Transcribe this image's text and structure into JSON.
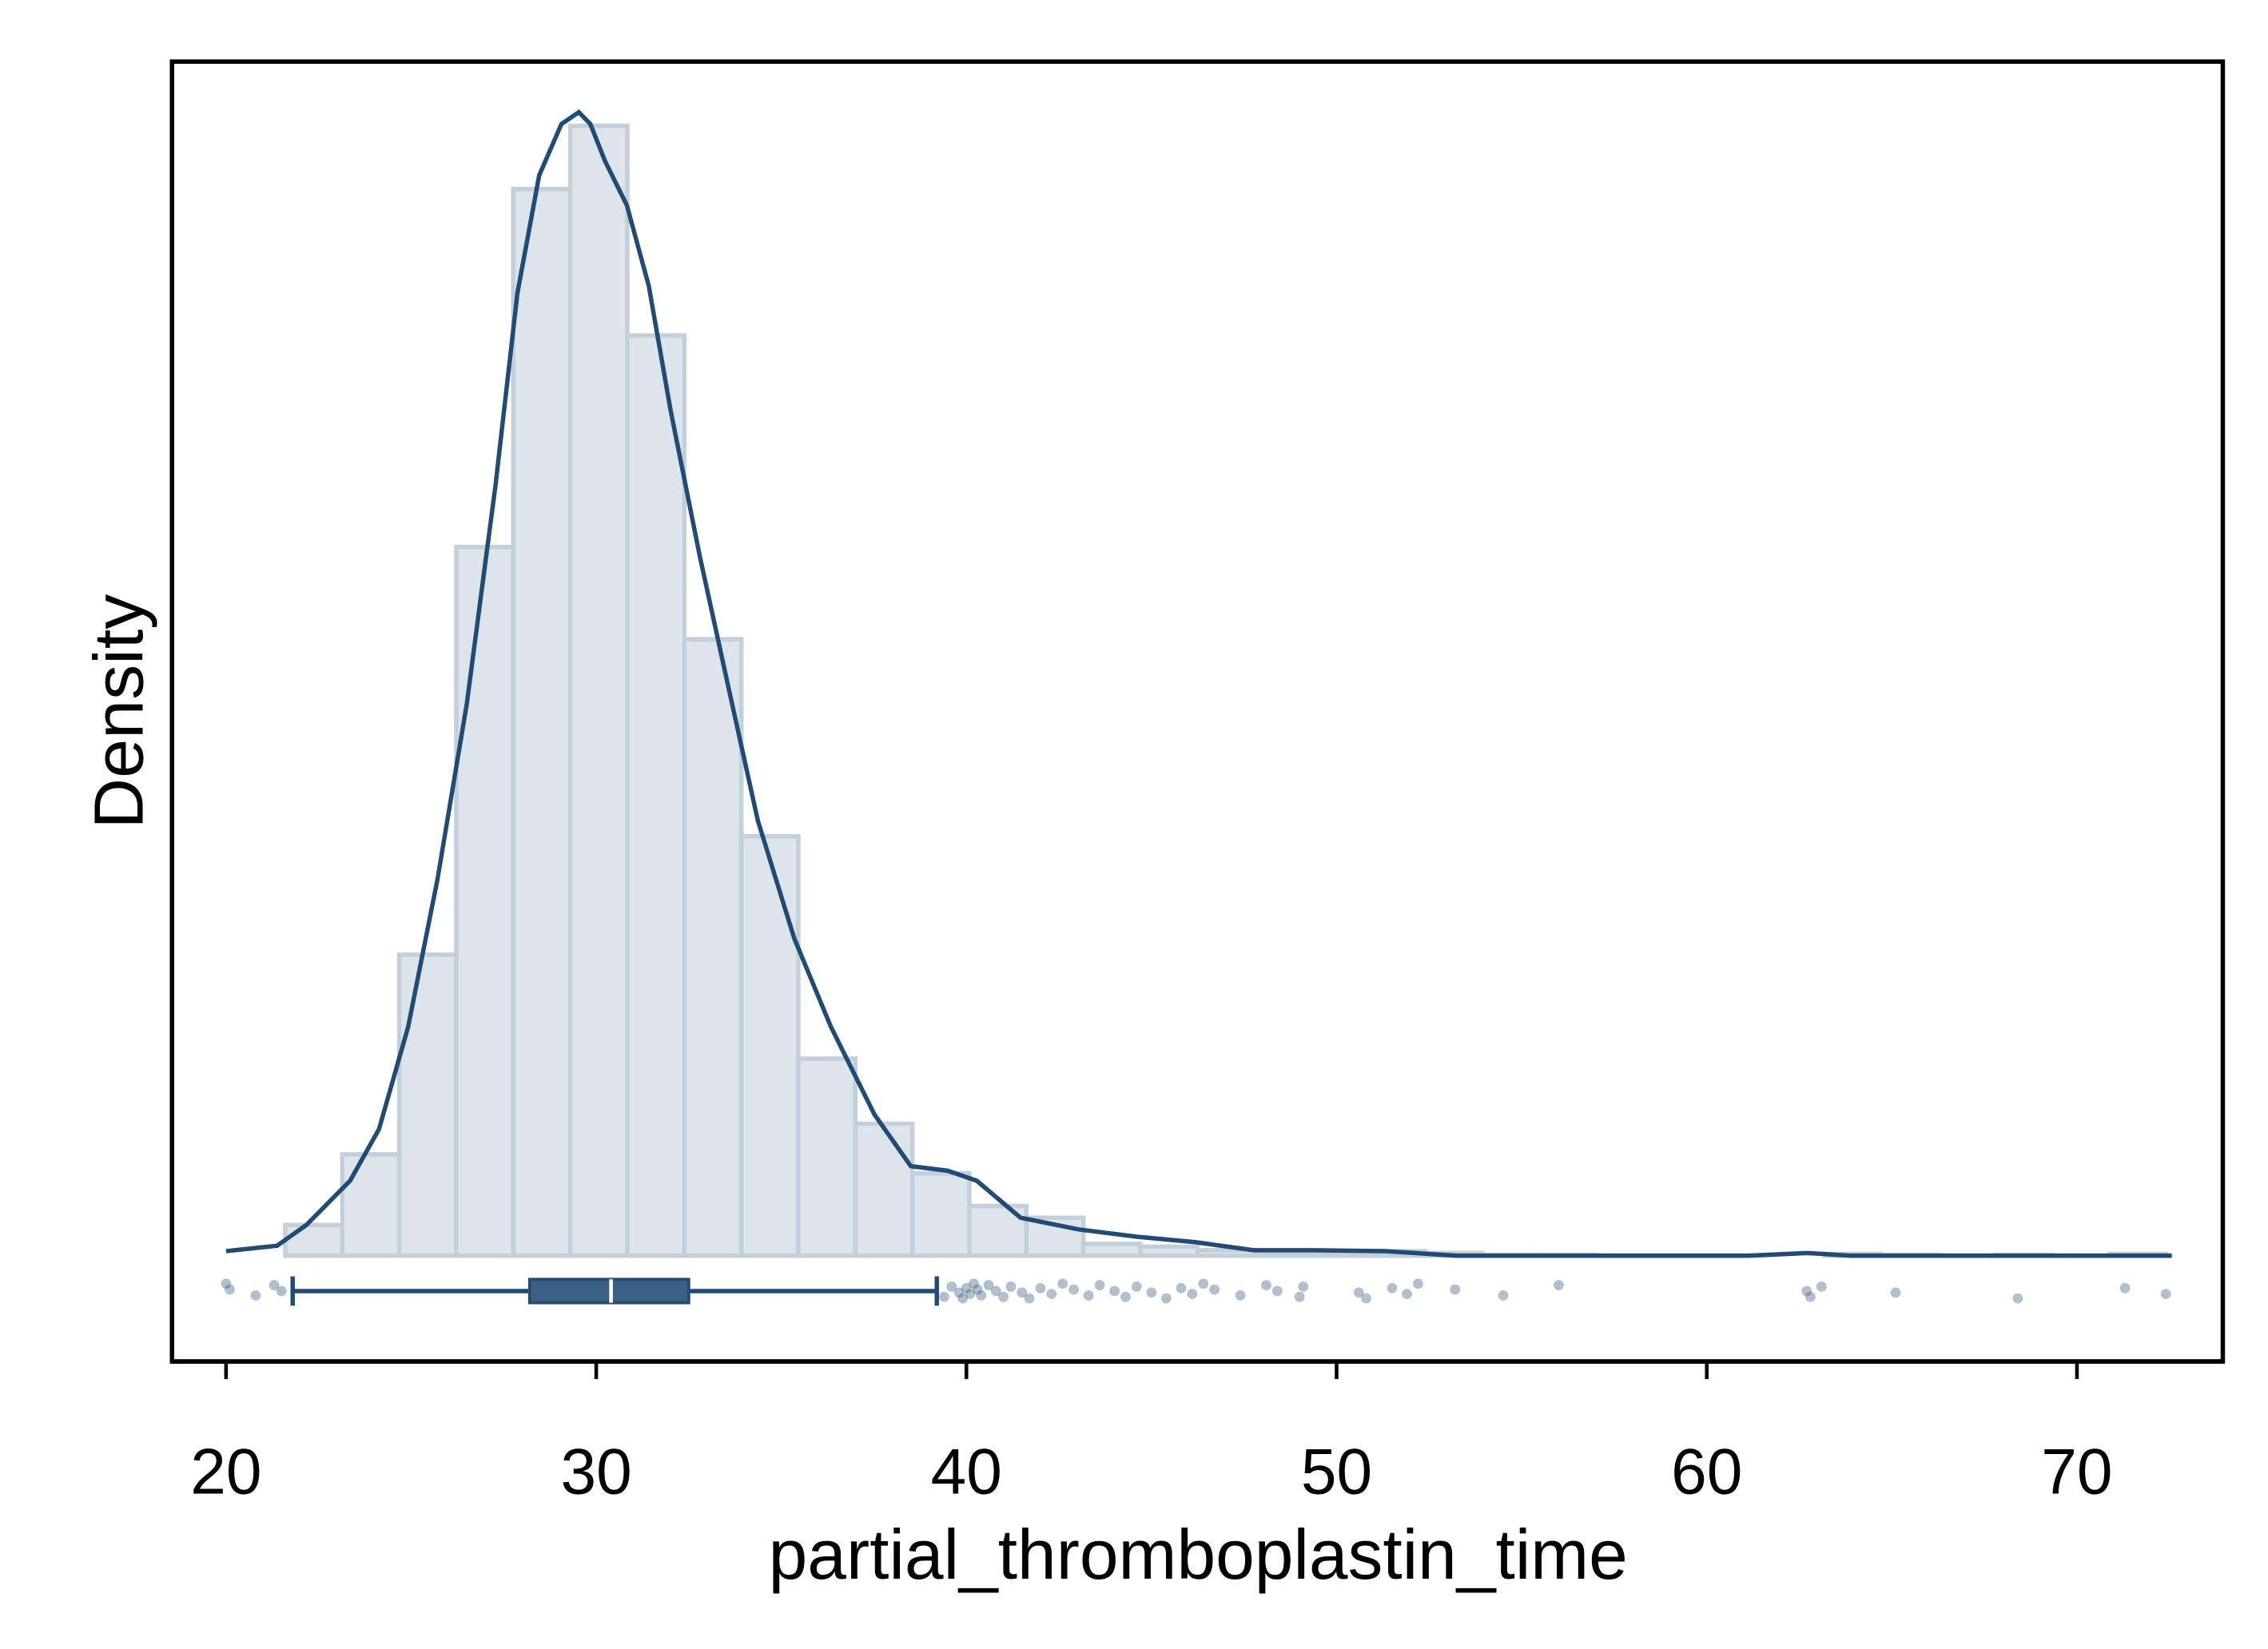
{
  "chart_data": {
    "type": "histogram",
    "x_label": "partial_thromboplastin_time",
    "y_label": "Density",
    "bins": [
      21.6,
      23.14,
      24.68,
      26.22,
      27.76,
      29.3,
      30.84,
      32.38,
      33.92,
      35.46,
      37,
      38.54,
      40.08,
      41.62,
      43.16,
      44.7,
      46.24,
      47.78,
      49.32,
      50.86,
      52.4,
      53.94,
      55.48,
      57.02,
      58.56,
      60.1,
      61.64,
      63.18,
      64.72,
      66.26,
      67.8,
      69.34,
      70.88,
      72.42
    ],
    "values": [
      0.0034,
      0.0112,
      0.0333,
      0.0784,
      0.118,
      0.125,
      0.1018,
      0.0682,
      0.0464,
      0.0218,
      0.0146,
      0.0091,
      0.0055,
      0.0042,
      0.0013,
      0.001,
      0.0006,
      0.0004,
      0.0004,
      0.0005,
      0.0003,
      0.0001,
      0.0001,
      0,
      0,
      0,
      0,
      0.0002,
      0.0001,
      0,
      0.0001,
      0,
      0.0002
    ],
    "color": "#dde4eb",
    "edge_color": "#c3cfda",
    "density": {
      "color": "#234a73",
      "x": [
        20.0,
        21.38,
        22.17,
        23.35,
        24.13,
        24.92,
        25.71,
        26.5,
        27.28,
        27.87,
        28.46,
        29.06,
        29.53,
        29.84,
        30.24,
        30.83,
        31.42,
        32.01,
        32.8,
        33.58,
        34.37,
        35.35,
        36.34,
        37.52,
        38.5,
        39.49,
        40.28,
        41.46,
        43.03,
        44.61,
        46.18,
        47.76,
        49.33,
        51.3,
        53.27,
        57.2,
        61.14,
        62.72,
        63.9,
        72.56
      ],
      "y": [
        0.0005,
        0.0011,
        0.0034,
        0.0083,
        0.014,
        0.0253,
        0.0416,
        0.061,
        0.0853,
        0.1065,
        0.1195,
        0.1252,
        0.1265,
        0.1252,
        0.1211,
        0.1162,
        0.1073,
        0.0935,
        0.0773,
        0.0627,
        0.0481,
        0.0351,
        0.0253,
        0.0156,
        0.0099,
        0.0094,
        0.0083,
        0.0042,
        0.0029,
        0.0021,
        0.0015,
        0.0006,
        0.0006,
        0.0005,
        0,
        0,
        0,
        0.0003,
        0,
        0
      ]
    },
    "boxplot": {
      "color": "#234a73",
      "whisker_low": 21.8,
      "q1": 28.2,
      "median": 30.4,
      "q3": 32.5,
      "whisker_high": 39.2,
      "outliers": [
        20.0,
        20.1,
        20.8,
        21.3,
        21.5,
        39.4,
        39.6,
        39.8,
        39.9,
        40.0,
        40.1,
        40.2,
        40.3,
        40.4,
        40.6,
        40.8,
        41.0,
        41.2,
        41.5,
        41.7,
        42.0,
        42.3,
        42.6,
        42.9,
        43.3,
        43.6,
        44.0,
        44.3,
        44.6,
        45.0,
        45.4,
        45.8,
        46.1,
        46.4,
        46.7,
        47.4,
        48.1,
        48.4,
        49.0,
        49.1,
        50.6,
        50.8,
        51.5,
        51.9,
        52.2,
        53.2,
        54.5,
        56.0,
        62.7,
        62.8,
        63.1,
        65.1,
        68.4,
        71.3,
        72.4
      ]
    },
    "xlim": [
      18.54,
      73.94
    ],
    "xticks": [
      20,
      30,
      40,
      50,
      60,
      70
    ],
    "ylim": [
      -0.0117,
      0.1321
    ]
  }
}
